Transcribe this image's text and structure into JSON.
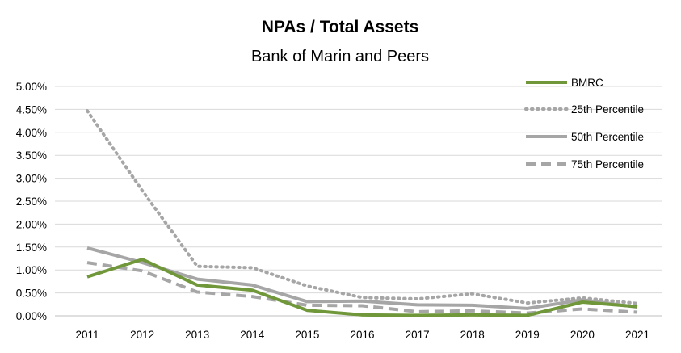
{
  "chart_data": {
    "type": "line",
    "title": "NPAs / Total Assets",
    "subtitle": "Bank of Marin and Peers",
    "xlabel": "",
    "ylabel": "",
    "categories": [
      "2011",
      "2012",
      "2013",
      "2014",
      "2015",
      "2016",
      "2017",
      "2018",
      "2019",
      "2020",
      "2021"
    ],
    "ylim": [
      0,
      5.0
    ],
    "yticks": [
      0,
      0.5,
      1.0,
      1.5,
      2.0,
      2.5,
      3.0,
      3.5,
      4.0,
      4.5,
      5.0
    ],
    "ytick_labels": [
      "0.00%",
      "0.50%",
      "1.00%",
      "1.50%",
      "2.00%",
      "2.50%",
      "3.00%",
      "3.50%",
      "4.00%",
      "4.50%",
      "5.00%"
    ],
    "grid": true,
    "legend_position": "top-right",
    "series": [
      {
        "name": "BMRC",
        "style": "solid",
        "color": "#70973a",
        "values": [
          0.85,
          1.23,
          0.67,
          0.56,
          0.12,
          0.02,
          0.01,
          0.02,
          0.01,
          0.3,
          0.2
        ]
      },
      {
        "name": "25th Percentile",
        "style": "dotted",
        "color": "#a6a6a6",
        "values": [
          4.47,
          2.73,
          1.08,
          1.05,
          0.65,
          0.4,
          0.37,
          0.48,
          0.28,
          0.39,
          0.27
        ]
      },
      {
        "name": "50th Percentile",
        "style": "solid",
        "color": "#a6a6a6",
        "values": [
          1.48,
          1.16,
          0.8,
          0.67,
          0.31,
          0.32,
          0.24,
          0.23,
          0.16,
          0.35,
          0.19
        ]
      },
      {
        "name": "75th Percentile",
        "style": "dashed",
        "color": "#a6a6a6",
        "values": [
          1.16,
          0.98,
          0.52,
          0.42,
          0.23,
          0.22,
          0.09,
          0.11,
          0.06,
          0.15,
          0.08
        ]
      }
    ]
  }
}
